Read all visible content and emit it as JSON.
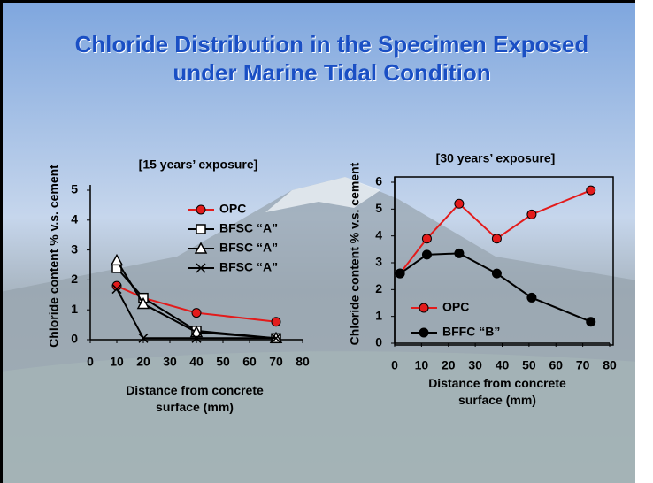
{
  "title": "Chloride Distribution in the Specimen Exposed under Marine Tidal Condition",
  "chart_data": [
    {
      "type": "line",
      "subtitle": "[15 years’ exposure]",
      "y_label": "Chloride content % v.s. cement",
      "x_label": "Distance from concrete surface (mm)",
      "xlim": [
        0,
        80
      ],
      "xticks": [
        0,
        10,
        20,
        30,
        40,
        50,
        60,
        70,
        80
      ],
      "ylim": [
        0,
        5
      ],
      "yticks": [
        0,
        1,
        2,
        3,
        4,
        5
      ],
      "legend": "upper right",
      "series": [
        {
          "name": "OPC",
          "color": "#e31b1b",
          "marker": "circle",
          "x": [
            10,
            20,
            40,
            70
          ],
          "values": [
            1.8,
            1.4,
            0.9,
            0.6
          ]
        },
        {
          "name": "BFSC “A”",
          "color": "#000000",
          "marker": "square",
          "x": [
            10,
            20,
            40,
            70
          ],
          "values": [
            2.4,
            1.4,
            0.3,
            0.05
          ]
        },
        {
          "name": "BFSC “A”",
          "color": "#000000",
          "marker": "triangle",
          "x": [
            10,
            20,
            40,
            70
          ],
          "values": [
            2.65,
            1.2,
            0.25,
            0.05
          ]
        },
        {
          "name": "BFSC “A”",
          "color": "#000000",
          "marker": "x",
          "x": [
            10,
            20,
            40,
            70
          ],
          "values": [
            1.7,
            0.05,
            0.05,
            0.05
          ]
        }
      ]
    },
    {
      "type": "line",
      "subtitle": "[30 years’ exposure]",
      "y_label": "Chloride content % v.s. cement",
      "x_label": "Distance from concrete surface (mm)",
      "xlim": [
        0,
        80
      ],
      "xticks": [
        0,
        10,
        20,
        30,
        40,
        50,
        60,
        70,
        80
      ],
      "ylim": [
        0,
        6
      ],
      "yticks": [
        0,
        1,
        2,
        3,
        4,
        5,
        6
      ],
      "legend": "lower left",
      "series": [
        {
          "name": "OPC",
          "color": "#e31b1b",
          "marker": "circle",
          "x": [
            2,
            12,
            24,
            38,
            51,
            73
          ],
          "values": [
            2.6,
            3.9,
            5.2,
            3.9,
            4.8,
            5.7
          ]
        },
        {
          "name": "BFFC “B”",
          "color": "#000000",
          "marker": "circle",
          "x": [
            2,
            12,
            24,
            38,
            51,
            73
          ],
          "values": [
            2.6,
            3.3,
            3.35,
            2.6,
            1.7,
            0.8
          ]
        }
      ]
    }
  ]
}
